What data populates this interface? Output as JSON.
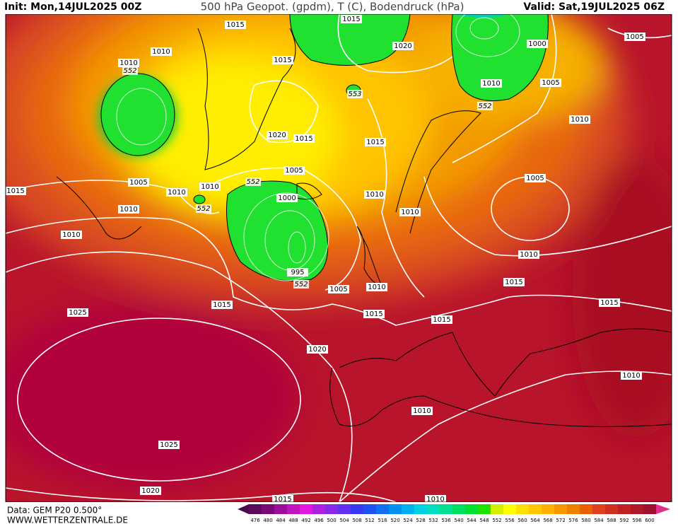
{
  "header": {
    "init": "Init: Mon,14JUL2025 00Z",
    "title": "500 hPa Geopot. (gpdm), T (C), Bodendruck (hPa)",
    "valid": "Valid: Sat,19JUL2025 06Z"
  },
  "footer": {
    "data": "Data: GEM P20 0.500°",
    "site": "WWW.WETTERZENTRALE.DE"
  },
  "legend": {
    "values": [
      476,
      480,
      484,
      488,
      492,
      496,
      500,
      504,
      508,
      512,
      516,
      520,
      524,
      528,
      532,
      536,
      540,
      544,
      548,
      552,
      556,
      560,
      564,
      568,
      572,
      576,
      580,
      584,
      588,
      592,
      596,
      600
    ],
    "colors": [
      "#5a0a5a",
      "#7a0a7a",
      "#9a109a",
      "#c014c0",
      "#e018e0",
      "#b020e0",
      "#8828e8",
      "#6030f0",
      "#3838f0",
      "#2050f0",
      "#1070f0",
      "#0090f0",
      "#00b0f0",
      "#00d0e0",
      "#00e0c0",
      "#00e090",
      "#00e060",
      "#00e030",
      "#20e000",
      "#d0f000",
      "#ffff00",
      "#ffe000",
      "#ffc800",
      "#ffb000",
      "#f89800",
      "#f08000",
      "#e86000",
      "#e04020",
      "#d03020",
      "#c02020",
      "#b01828",
      "#a01030"
    ]
  },
  "isobar_labels": [
    1015,
    1010,
    1010,
    1015,
    1015,
    1020,
    1000,
    1010,
    1005,
    1005,
    1010,
    1020,
    1015,
    1015,
    1005,
    1000,
    1010,
    1010,
    1005,
    1015,
    1005,
    1010,
    1010,
    1010,
    1010,
    995,
    1005,
    1010,
    1010,
    1015,
    1015,
    1015,
    1015,
    1015,
    1025,
    1020,
    1010,
    1010,
    1025,
    1020,
    1015,
    1010
  ],
  "height_labels": [
    552,
    552,
    552,
    553,
    552,
    552
  ]
}
